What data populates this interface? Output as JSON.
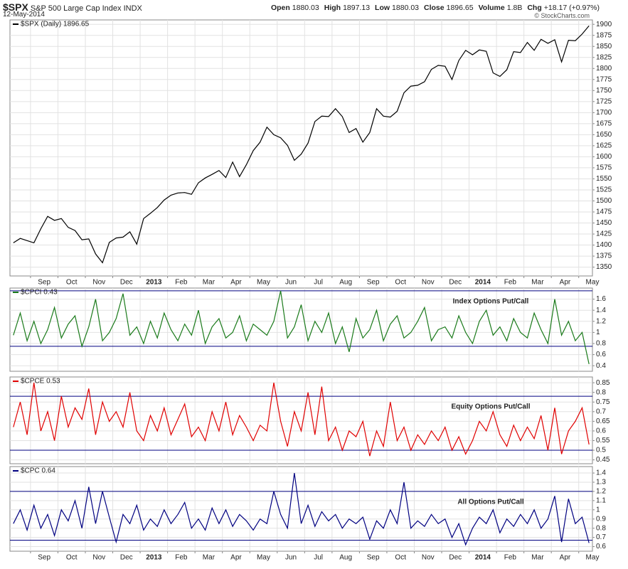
{
  "header": {
    "symbol": "$SPX",
    "name": "S&P 500 Large Cap Index",
    "exchange": "INDX",
    "date": "12-May-2014",
    "stats": [
      {
        "label": "Open",
        "value": 1880.03
      },
      {
        "label": "High",
        "value": 1897.13
      },
      {
        "label": "Low",
        "value": 1880.03
      },
      {
        "label": "Close",
        "value": 1896.65
      },
      {
        "label": "Volume",
        "value": "1.8B"
      },
      {
        "label": "Chg",
        "value": "+18.17 (+0.97%)"
      }
    ],
    "copyright": "© StockCharts.com"
  },
  "chart_data": [
    {
      "type": "line",
      "grid": true,
      "categories": [
        null,
        null,
        null,
        "Sep",
        null,
        null,
        null,
        "Oct",
        null,
        null,
        null,
        "Nov",
        null,
        null,
        null,
        "Dec",
        null,
        null,
        null,
        "2013",
        null,
        null,
        null,
        "Feb",
        null,
        null,
        null,
        "Mar",
        null,
        null,
        null,
        "Apr",
        null,
        null,
        null,
        "May",
        null,
        null,
        null,
        "Jun",
        null,
        null,
        null,
        "Jul",
        null,
        null,
        null,
        "Aug",
        null,
        null,
        null,
        "Sep",
        null,
        null,
        null,
        "Oct",
        null,
        null,
        null,
        "Nov",
        null,
        null,
        null,
        "Dec",
        null,
        null,
        null,
        "2014",
        null,
        null,
        null,
        "Feb",
        null,
        null,
        null,
        "Mar",
        null,
        null,
        null,
        "Apr",
        null,
        null,
        null,
        "May",
        null
      ],
      "series": [
        {
          "name": "$SPX (Daily) 1896.65",
          "color": "#000000",
          "values": [
            1405,
            1415,
            1410,
            1405,
            1437,
            1465,
            1456,
            1460,
            1440,
            1433,
            1412,
            1414,
            1380,
            1360,
            1406,
            1416,
            1418,
            1430,
            1402,
            1460,
            1472,
            1485,
            1502,
            1513,
            1518,
            1519,
            1515,
            1541,
            1552,
            1560,
            1569,
            1553,
            1588,
            1555,
            1582,
            1614,
            1633,
            1667,
            1650,
            1643,
            1626,
            1592,
            1606,
            1631,
            1680,
            1692,
            1691,
            1709,
            1691,
            1655,
            1664,
            1633,
            1655,
            1709,
            1692,
            1690,
            1703,
            1745,
            1760,
            1762,
            1770,
            1798,
            1807,
            1805,
            1775,
            1818,
            1841,
            1831,
            1842,
            1839,
            1790,
            1782,
            1797,
            1838,
            1836,
            1859,
            1841,
            1866,
            1857,
            1865,
            1815,
            1864,
            1863,
            1878,
            1896.65
          ]
        }
      ],
      "ylim": [
        1330,
        1910
      ],
      "yticks": [
        1350,
        1375,
        1400,
        1425,
        1450,
        1475,
        1500,
        1525,
        1550,
        1575,
        1600,
        1625,
        1650,
        1675,
        1700,
        1725,
        1750,
        1775,
        1800,
        1825,
        1850,
        1875,
        1900
      ]
    },
    {
      "type": "line",
      "grid": true,
      "annotation": "Index Options Put/Call",
      "annotation_color": "#1a7a1a",
      "series": [
        {
          "name": "$CPCI 0.43",
          "color": "#1a7a1a",
          "values": [
            0.95,
            1.35,
            0.85,
            1.2,
            0.8,
            1.05,
            1.45,
            0.9,
            1.15,
            1.3,
            0.75,
            1.1,
            1.6,
            0.85,
            1.0,
            1.25,
            1.7,
            0.95,
            1.1,
            0.8,
            1.2,
            0.9,
            1.35,
            1.05,
            0.85,
            1.15,
            0.95,
            1.4,
            0.8,
            1.1,
            1.25,
            0.9,
            1.0,
            1.3,
            0.85,
            1.15,
            1.05,
            0.95,
            1.2,
            1.75,
            0.9,
            1.1,
            1.5,
            0.85,
            1.2,
            1.0,
            1.35,
            0.8,
            1.1,
            0.65,
            1.25,
            0.9,
            1.05,
            1.4,
            0.85,
            1.15,
            1.3,
            0.9,
            1.0,
            1.2,
            1.45,
            0.85,
            1.05,
            1.1,
            0.9,
            1.3,
            1.0,
            0.8,
            1.2,
            1.4,
            0.95,
            1.1,
            0.85,
            1.25,
            1.0,
            0.9,
            1.35,
            1.05,
            0.8,
            1.6,
            0.95,
            1.2,
            0.85,
            1.0,
            0.43
          ]
        }
      ],
      "ylim": [
        0.3,
        1.8
      ],
      "yticks": [
        0.4,
        0.6,
        0.8,
        1.0,
        1.2,
        1.4,
        1.6
      ],
      "hlines": [
        0.75,
        1.75
      ],
      "hline_color": "#000080"
    },
    {
      "type": "line",
      "grid": true,
      "annotation": "Equity Options Put/Call",
      "annotation_color": "#e00000",
      "series": [
        {
          "name": "$CPCE 0.53",
          "color": "#e00000",
          "values": [
            0.62,
            0.75,
            0.58,
            0.85,
            0.6,
            0.7,
            0.55,
            0.78,
            0.62,
            0.72,
            0.66,
            0.82,
            0.58,
            0.75,
            0.65,
            0.7,
            0.62,
            0.8,
            0.6,
            0.55,
            0.68,
            0.6,
            0.72,
            0.58,
            0.66,
            0.74,
            0.57,
            0.62,
            0.55,
            0.7,
            0.6,
            0.75,
            0.58,
            0.68,
            0.62,
            0.55,
            0.63,
            0.6,
            0.85,
            0.65,
            0.52,
            0.7,
            0.6,
            0.8,
            0.58,
            0.83,
            0.55,
            0.62,
            0.5,
            0.6,
            0.57,
            0.65,
            0.47,
            0.6,
            0.52,
            0.75,
            0.55,
            0.62,
            0.5,
            0.58,
            0.53,
            0.6,
            0.55,
            0.62,
            0.5,
            0.57,
            0.48,
            0.55,
            0.65,
            0.6,
            0.7,
            0.58,
            0.52,
            0.63,
            0.55,
            0.62,
            0.56,
            0.68,
            0.5,
            0.72,
            0.48,
            0.6,
            0.65,
            0.72,
            0.53
          ]
        }
      ],
      "ylim": [
        0.43,
        0.88
      ],
      "yticks": [
        0.45,
        0.5,
        0.55,
        0.6,
        0.65,
        0.7,
        0.75,
        0.8,
        0.85
      ],
      "hlines": [
        0.5,
        0.78
      ],
      "hline_color": "#000080"
    },
    {
      "type": "line",
      "grid": true,
      "annotation": "All Options Put/Call",
      "annotation_color": "#000080",
      "categories": [
        null,
        null,
        null,
        "Sep",
        null,
        null,
        null,
        "Oct",
        null,
        null,
        null,
        "Nov",
        null,
        null,
        null,
        "Dec",
        null,
        null,
        null,
        "2013",
        null,
        null,
        null,
        "Feb",
        null,
        null,
        null,
        "Mar",
        null,
        null,
        null,
        "Apr",
        null,
        null,
        null,
        "May",
        null,
        null,
        null,
        "Jun",
        null,
        null,
        null,
        "Jul",
        null,
        null,
        null,
        "Aug",
        null,
        null,
        null,
        "Sep",
        null,
        null,
        null,
        "Oct",
        null,
        null,
        null,
        "Nov",
        null,
        null,
        null,
        "Dec",
        null,
        null,
        null,
        "2014",
        null,
        null,
        null,
        "Feb",
        null,
        null,
        null,
        "Mar",
        null,
        null,
        null,
        "Apr",
        null,
        null,
        null,
        "May",
        null
      ],
      "series": [
        {
          "name": "$CPC 0.64",
          "color": "#000080",
          "values": [
            0.85,
            1.0,
            0.78,
            1.05,
            0.8,
            0.95,
            0.72,
            1.0,
            0.88,
            1.1,
            0.8,
            1.25,
            0.85,
            1.2,
            0.92,
            0.65,
            0.95,
            0.85,
            1.05,
            0.78,
            0.9,
            0.82,
            1.0,
            0.85,
            0.95,
            1.08,
            0.8,
            0.9,
            0.78,
            1.02,
            0.85,
            1.0,
            0.82,
            0.95,
            0.88,
            0.78,
            0.9,
            0.85,
            1.2,
            0.95,
            0.8,
            1.4,
            0.85,
            1.05,
            0.82,
            0.98,
            0.88,
            0.95,
            0.8,
            0.9,
            0.85,
            0.92,
            0.68,
            0.88,
            0.8,
            1.0,
            0.85,
            1.3,
            0.8,
            0.88,
            0.82,
            0.95,
            0.85,
            0.9,
            0.7,
            0.85,
            0.62,
            0.8,
            0.92,
            0.85,
            1.0,
            0.75,
            0.9,
            0.82,
            0.95,
            0.85,
            1.0,
            0.8,
            0.9,
            1.15,
            0.65,
            1.12,
            0.85,
            0.92,
            0.64
          ]
        }
      ],
      "ylim": [
        0.55,
        1.47
      ],
      "yticks": [
        0.6,
        0.7,
        0.8,
        0.9,
        1.0,
        1.1,
        1.2,
        1.3,
        1.4
      ],
      "hlines": [
        0.67,
        1.2
      ],
      "hline_color": "#000080"
    }
  ]
}
